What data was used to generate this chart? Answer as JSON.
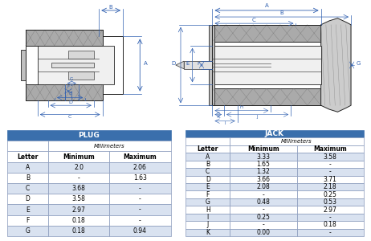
{
  "plug_title": "PLUG",
  "jack_title": "JACK",
  "mm_label": "Millimeters",
  "col_letter": "Letter",
  "col_min": "Minimum",
  "col_max": "Maximum",
  "plug_rows": [
    [
      "A",
      "2.0",
      "2.06"
    ],
    [
      "B",
      "-",
      "1.63"
    ],
    [
      "C",
      "3.68",
      "-"
    ],
    [
      "D",
      "3.58",
      "-"
    ],
    [
      "E",
      "2.97",
      "-"
    ],
    [
      "F",
      "0.18",
      "-"
    ],
    [
      "G",
      "0.18",
      "0.94"
    ]
  ],
  "jack_rows": [
    [
      "A",
      "3.33",
      "3.58"
    ],
    [
      "B",
      "1.65",
      "-"
    ],
    [
      "C",
      "1.32",
      "-"
    ],
    [
      "D",
      "3.66",
      "3.71"
    ],
    [
      "E",
      "2.08",
      "2.18"
    ],
    [
      "F",
      "-",
      "0.25"
    ],
    [
      "G",
      "0.48",
      "0.53"
    ],
    [
      "H",
      "-",
      "2.97"
    ],
    [
      "I",
      "0.25",
      "-"
    ],
    [
      "J",
      "-",
      "0.18"
    ],
    [
      "K",
      "0.00",
      "-"
    ]
  ],
  "header_color": "#3a6fac",
  "row_even_color": "#d9e2f0",
  "row_odd_color": "#ffffff",
  "bg_color": "#ffffff",
  "title_fontsize": 6.5,
  "cell_fontsize": 5.5,
  "dim_color": "#3060b0"
}
